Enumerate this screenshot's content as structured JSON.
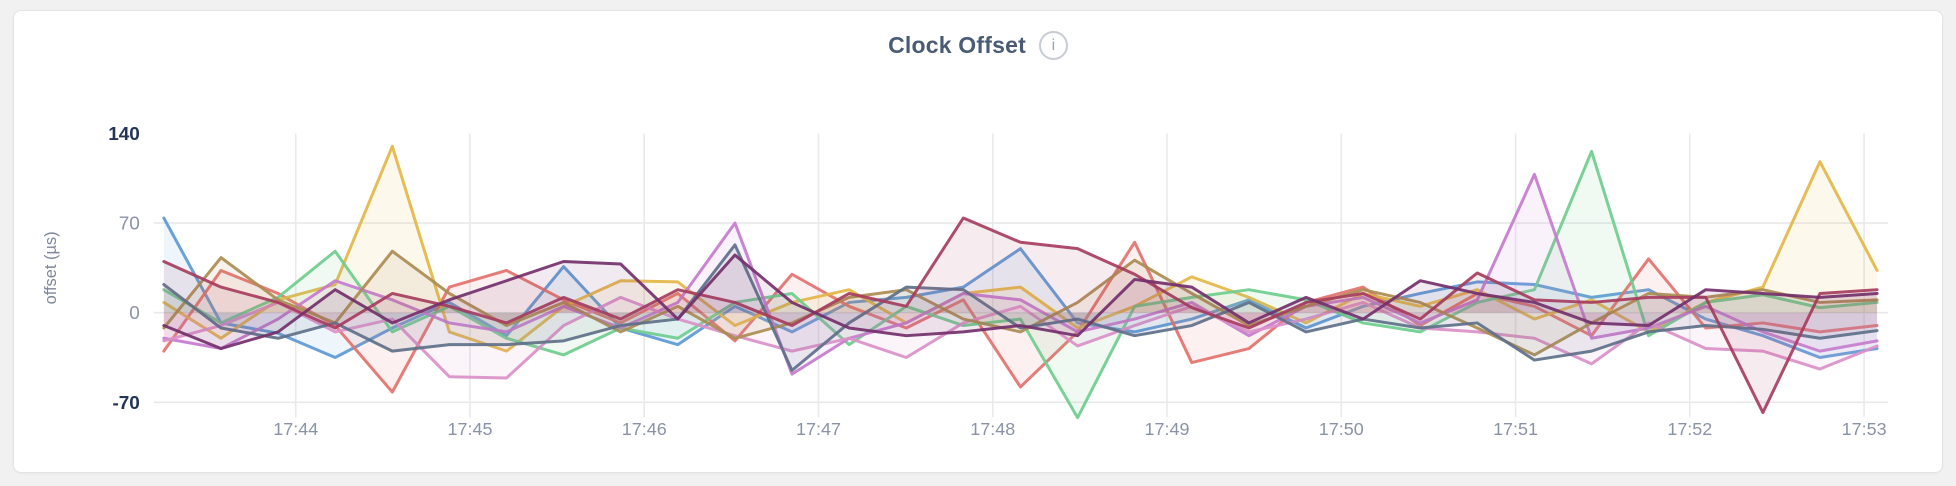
{
  "header": {
    "title": "Clock Offset",
    "info_icon_glyph": "i"
  },
  "theme": {
    "page_background": "#f1f1f2",
    "card_background": "#ffffff",
    "card_border": "#e3e3e6",
    "title_color": "#4a5b76",
    "info_icon_border": "#c8ccd3",
    "info_icon_glyph_color": "#9aa2ae",
    "grid_color": "#e9e9eb",
    "axis_extreme_label_color": "#243557",
    "axis_label_color": "#8a93a6",
    "axis_title_color": "#7d8799"
  },
  "chart_data": {
    "type": "line",
    "title": "Clock Offset",
    "xlabel": "",
    "ylabel": "offset (µs)",
    "ylim": [
      -70,
      140
    ],
    "y_tick_values": [
      140,
      70,
      0,
      -70
    ],
    "x_tick_labels": [
      "17:44",
      "17:45",
      "17:46",
      "17:47",
      "17:48",
      "17:49",
      "17:50",
      "17:51",
      "17:52",
      "17:53"
    ],
    "x_start_time": "17:43:14",
    "x_end_time": "17:53:04",
    "point_interval_seconds": 20,
    "grid": true,
    "legend_position": "none",
    "line_width": 3,
    "fill_opacity": 0.1,
    "series": [
      {
        "name": "blue",
        "color": "#5C99D6",
        "values": [
          74,
          -8,
          -16,
          -35,
          -12,
          8,
          -18,
          36,
          -12,
          -25,
          5,
          -15,
          8,
          12,
          20,
          50,
          -8,
          -15,
          -5,
          10,
          -12,
          5,
          15,
          24,
          22,
          12,
          18,
          -5,
          -18,
          -35,
          -28
        ]
      },
      {
        "name": "salmon",
        "color": "#E4716C",
        "values": [
          -30,
          33,
          15,
          -10,
          -62,
          20,
          33,
          10,
          -8,
          15,
          -22,
          30,
          5,
          -12,
          10,
          -58,
          -15,
          55,
          -39,
          -28,
          8,
          20,
          -10,
          15,
          5,
          -18,
          42,
          -12,
          -8,
          -15,
          -10
        ]
      },
      {
        "name": "gold",
        "color": "#E4B647",
        "values": [
          8,
          -20,
          10,
          22,
          130,
          -15,
          -30,
          5,
          25,
          24,
          -10,
          8,
          18,
          -8,
          15,
          20,
          -12,
          5,
          28,
          12,
          -8,
          15,
          5,
          18,
          -5,
          10,
          -15,
          8,
          20,
          118,
          33
        ]
      },
      {
        "name": "green",
        "color": "#6FCD8E",
        "values": [
          18,
          -8,
          12,
          48,
          -15,
          5,
          -20,
          -33,
          -12,
          -20,
          8,
          15,
          -25,
          5,
          -10,
          -5,
          -82,
          5,
          12,
          18,
          10,
          -8,
          -15,
          8,
          18,
          126,
          -18,
          8,
          14,
          4,
          8
        ]
      },
      {
        "name": "violet",
        "color": "#C47BCE",
        "values": [
          -20,
          -28,
          -5,
          25,
          10,
          -8,
          -15,
          5,
          -12,
          8,
          70,
          -48,
          -20,
          -8,
          15,
          10,
          -15,
          -5,
          8,
          -18,
          5,
          12,
          -8,
          10,
          108,
          -20,
          -12,
          5,
          -15,
          -30,
          -22
        ]
      },
      {
        "name": "pink",
        "color": "#DB90C8",
        "values": [
          -22,
          -10,
          8,
          -15,
          -5,
          -50,
          -51,
          -10,
          12,
          -5,
          -18,
          -30,
          -20,
          -35,
          -8,
          5,
          -26,
          -10,
          5,
          -15,
          -5,
          8,
          -12,
          -15,
          -20,
          -40,
          -8,
          -28,
          -30,
          -44,
          -26
        ]
      },
      {
        "name": "olive",
        "color": "#AB8C51",
        "values": [
          -12,
          43,
          10,
          -8,
          48,
          15,
          -10,
          8,
          -15,
          5,
          -20,
          -8,
          12,
          18,
          -5,
          -15,
          8,
          41,
          15,
          -10,
          5,
          18,
          8,
          -12,
          -33,
          -8,
          15,
          12,
          18,
          8,
          10
        ]
      },
      {
        "name": "slate",
        "color": "#5E7089",
        "values": [
          22,
          -12,
          -20,
          -8,
          -30,
          -25,
          -25,
          -22,
          -10,
          -5,
          53,
          -45,
          -8,
          20,
          18,
          -12,
          -5,
          -18,
          -10,
          8,
          -15,
          -5,
          -12,
          -8,
          -37,
          -30,
          -15,
          -10,
          -13,
          -20,
          -14
        ]
      },
      {
        "name": "maroon",
        "color": "#A63D5E",
        "values": [
          40,
          20,
          8,
          -12,
          15,
          5,
          -8,
          12,
          -5,
          18,
          8,
          -10,
          15,
          5,
          74,
          55,
          50,
          30,
          4,
          -12,
          8,
          15,
          -5,
          31,
          10,
          8,
          12,
          12,
          -78,
          15,
          18
        ]
      },
      {
        "name": "plum",
        "color": "#73306B",
        "values": [
          -10,
          -28,
          -15,
          18,
          -8,
          10,
          25,
          40,
          38,
          -5,
          45,
          8,
          -12,
          -18,
          -15,
          -10,
          -18,
          26,
          20,
          -8,
          12,
          -5,
          25,
          15,
          8,
          -8,
          -10,
          18,
          15,
          12,
          15
        ]
      }
    ]
  }
}
